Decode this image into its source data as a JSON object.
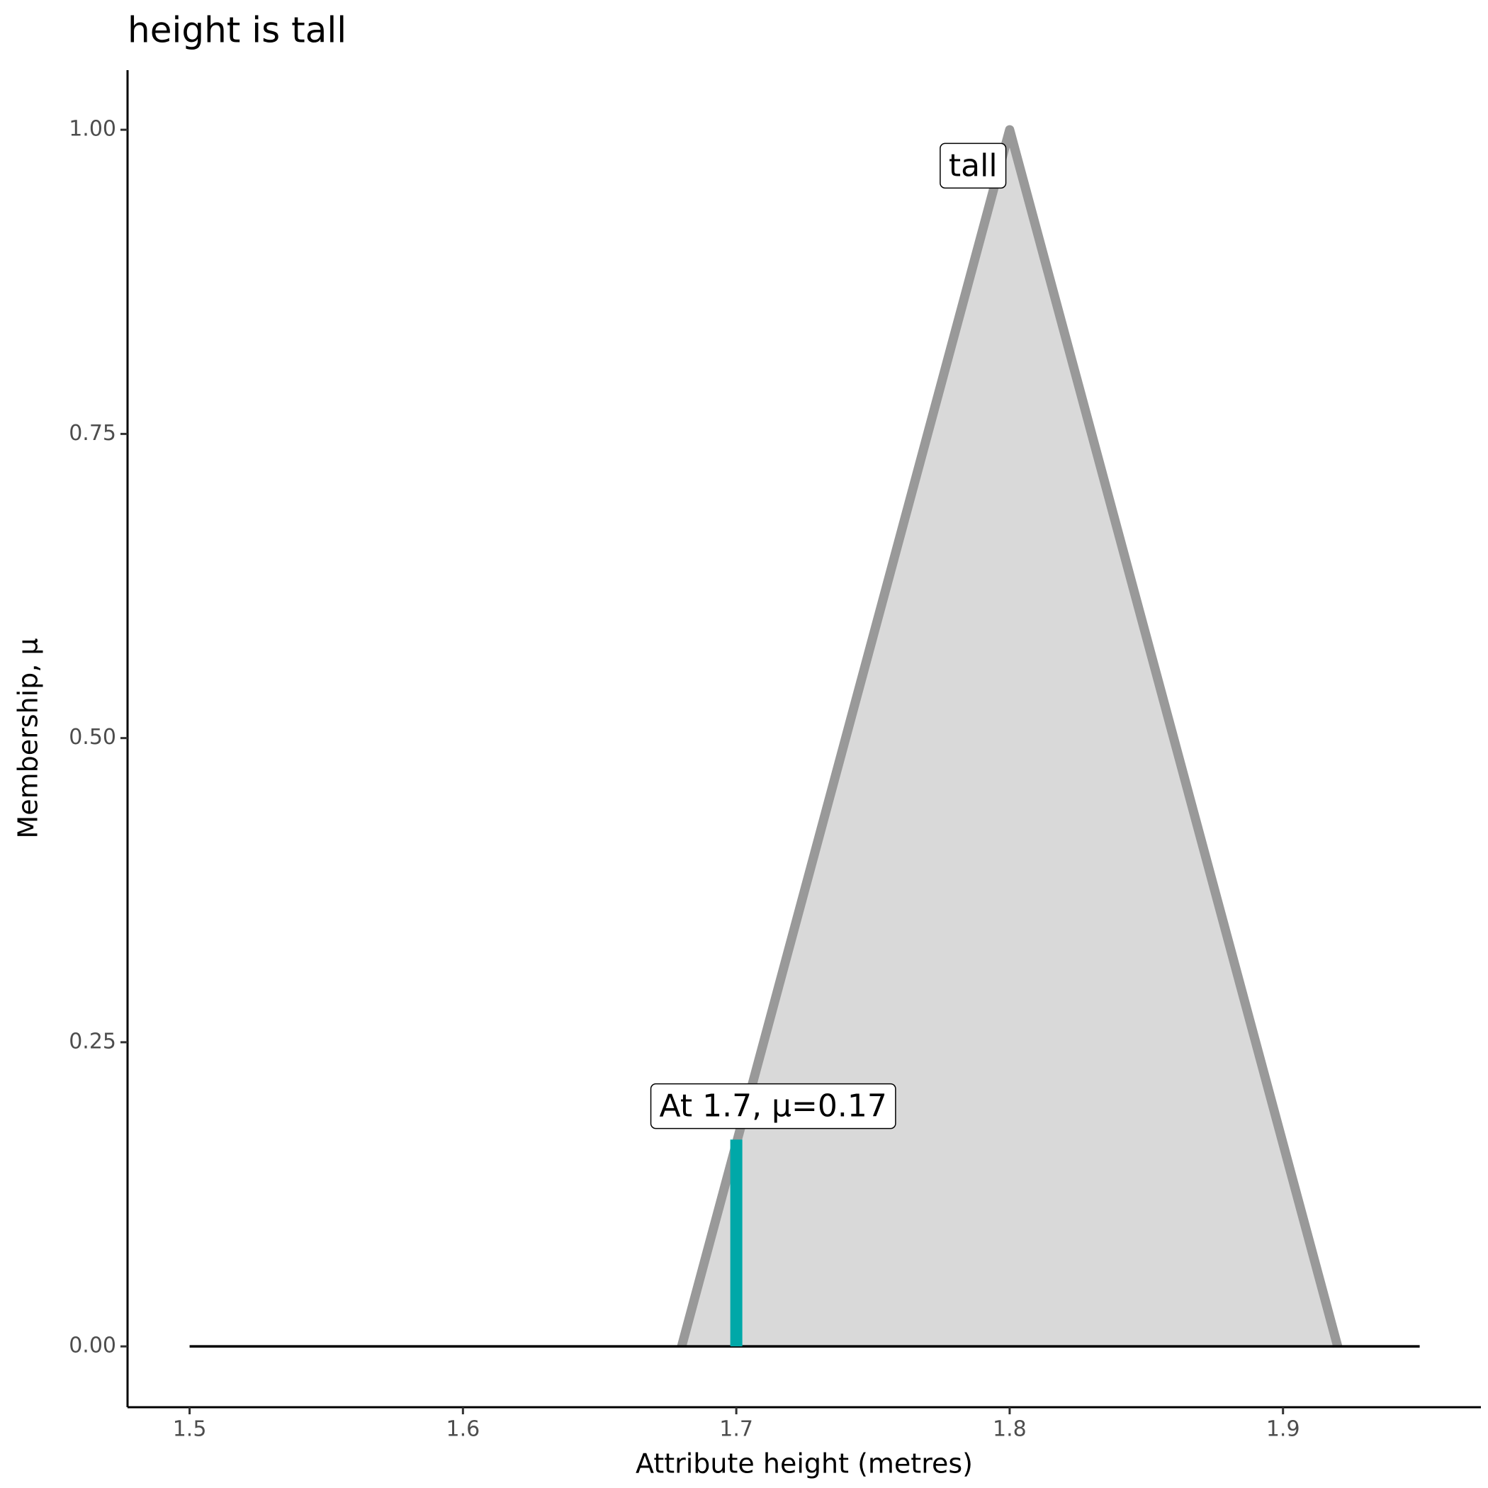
{
  "chart_data": {
    "type": "area",
    "title": "height is tall",
    "x_label": "Attribute height (metres)",
    "y_label": "Membership, μ",
    "series": [
      {
        "color": "#999999",
        "fill": "#d9d9d9",
        "x": [
          1.68,
          1.8,
          1.92
        ],
        "values": [
          0,
          1,
          0
        ]
      }
    ],
    "baseline": {
      "color": "#000000",
      "x": [
        1.5,
        1.95
      ],
      "values": [
        0,
        0
      ]
    },
    "marker": {
      "color": "#00a8a8",
      "x": 1.7,
      "value": 0.17
    },
    "annotations": [
      {
        "text": "tall",
        "x": 1.7866,
        "y": 0.969
      },
      {
        "text": "At 1.7, μ=0.17",
        "x": 1.7135,
        "y": 0.196
      }
    ],
    "xlim": [
      1.4773,
      1.9724
    ],
    "ylim": [
      -0.05,
      1.049
    ],
    "xticks": [
      1.5,
      1.6,
      1.7,
      1.8,
      1.9
    ],
    "yticks": [
      {
        "value": 0,
        "label": "0.00"
      },
      {
        "value": 0.25,
        "label": "0.25"
      },
      {
        "value": 0.5,
        "label": "0.50"
      },
      {
        "value": 0.75,
        "label": "0.75"
      },
      {
        "value": 1,
        "label": "1.00"
      }
    ]
  }
}
